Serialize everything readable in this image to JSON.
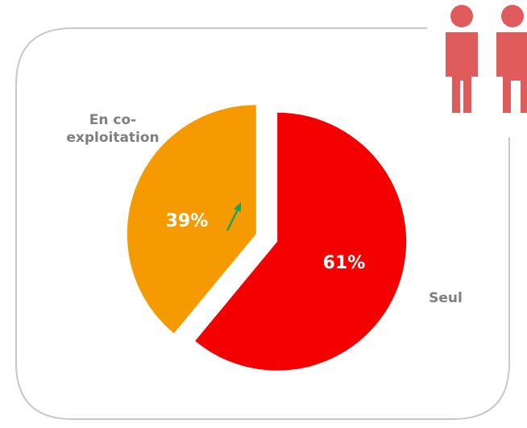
{
  "chart_data": {
    "type": "pie",
    "categories": [
      "Seul",
      "En co-exploitation"
    ],
    "values": [
      61,
      39
    ],
    "value_labels": [
      "61%",
      "39%"
    ],
    "colors": [
      "#f50000",
      "#f59a00"
    ]
  }
}
